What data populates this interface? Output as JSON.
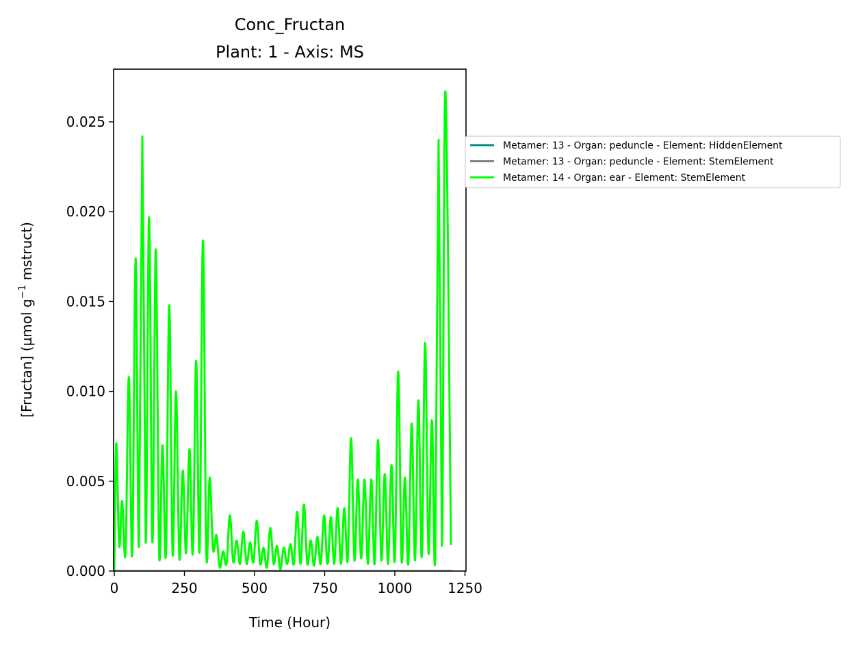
{
  "chart_data": {
    "type": "line",
    "title": "Conc_Fructan",
    "subtitle": "Plant: 1 - Axis: MS",
    "xlabel": "Time (Hour)",
    "ylabel": "[Fructan] (µmol g⁻¹ mstruct)",
    "ylabel_prefix": "[Fructan] (µmol g",
    "ylabel_sup": "−1",
    "ylabel_suffix": " mstruct)",
    "xlim": [
      0,
      1262
    ],
    "ylim": [
      0,
      0.0279
    ],
    "xticks": [
      0,
      250,
      500,
      750,
      1000,
      1250
    ],
    "xtick_labels": [
      "0",
      "250",
      "500",
      "750",
      "1000",
      "1250"
    ],
    "yticks": [
      0,
      0.005,
      0.01,
      0.015,
      0.02,
      0.025
    ],
    "ytick_labels": [
      "0.000",
      "0.005",
      "0.010",
      "0.015",
      "0.020",
      "0.025"
    ],
    "grid": false,
    "legend_position": "outside right, upper",
    "series": [
      {
        "name": "Metamer: 13 - Organ: peduncle - Element: HiddenElement",
        "color": "#008B80",
        "x": [
          0,
          1200
        ],
        "y": [
          0,
          0
        ]
      },
      {
        "name": "Metamer: 13 - Organ: peduncle - Element: StemElement",
        "color": "#808080",
        "x": [
          0,
          1200
        ],
        "y": [
          0,
          0
        ]
      },
      {
        "name": "Metamer: 14 - Organ: ear - Element: StemElement",
        "color": "#00FF00",
        "peaks_x": [
          7,
          28,
          52,
          76,
          100,
          124,
          148,
          172,
          196,
          220,
          244,
          268,
          292,
          316,
          340,
          364,
          388,
          412,
          436,
          460,
          484,
          508,
          532,
          556,
          580,
          604,
          628,
          652,
          676,
          700,
          724,
          748,
          772,
          796,
          820,
          844,
          868,
          892,
          916,
          940,
          964,
          988,
          1012,
          1036,
          1060,
          1084,
          1108,
          1132,
          1156,
          1180
        ],
        "peaks_y": [
          0.0071,
          0.0039,
          0.0108,
          0.0174,
          0.0242,
          0.0197,
          0.0179,
          0.007,
          0.0148,
          0.01,
          0.0056,
          0.0068,
          0.0117,
          0.0184,
          0.0052,
          0.002,
          0.0011,
          0.0031,
          0.0017,
          0.0022,
          0.0016,
          0.0028,
          0.0013,
          0.0024,
          0.0014,
          0.0013,
          0.0015,
          0.0033,
          0.0037,
          0.0017,
          0.0019,
          0.0031,
          0.003,
          0.0035,
          0.0035,
          0.0074,
          0.0051,
          0.0051,
          0.0051,
          0.0073,
          0.0054,
          0.0059,
          0.0111,
          0.0052,
          0.0082,
          0.0095,
          0.0127,
          0.0084,
          0.024,
          0.0267
        ],
        "troughs_y": [
          0.0014,
          0.001,
          0.0009,
          0.0014,
          0.0016,
          0.0016,
          0.0009,
          0.0009,
          0.0009,
          0.0007,
          0.001,
          0.001,
          0.0011,
          0.001,
          0.0012,
          0.0002,
          0.0004,
          0.0005,
          0.0004,
          0.0004,
          0.0005,
          0.0004,
          0.0002,
          0.0004,
          0.0001,
          0.0004,
          0.0004,
          0.0004,
          0.0004,
          0.0003,
          0.0004,
          0.0004,
          0.0004,
          0.0004,
          0.0006,
          0.0006,
          0.0007,
          0.0004,
          0.0004,
          0.0006,
          0.0004,
          0.0006,
          0.0006,
          0.0004,
          0.0006,
          0.0008,
          0.001,
          0.0008,
          0.0014,
          0.0017
        ],
        "final": [
          1200,
          0.0015
        ]
      }
    ]
  }
}
